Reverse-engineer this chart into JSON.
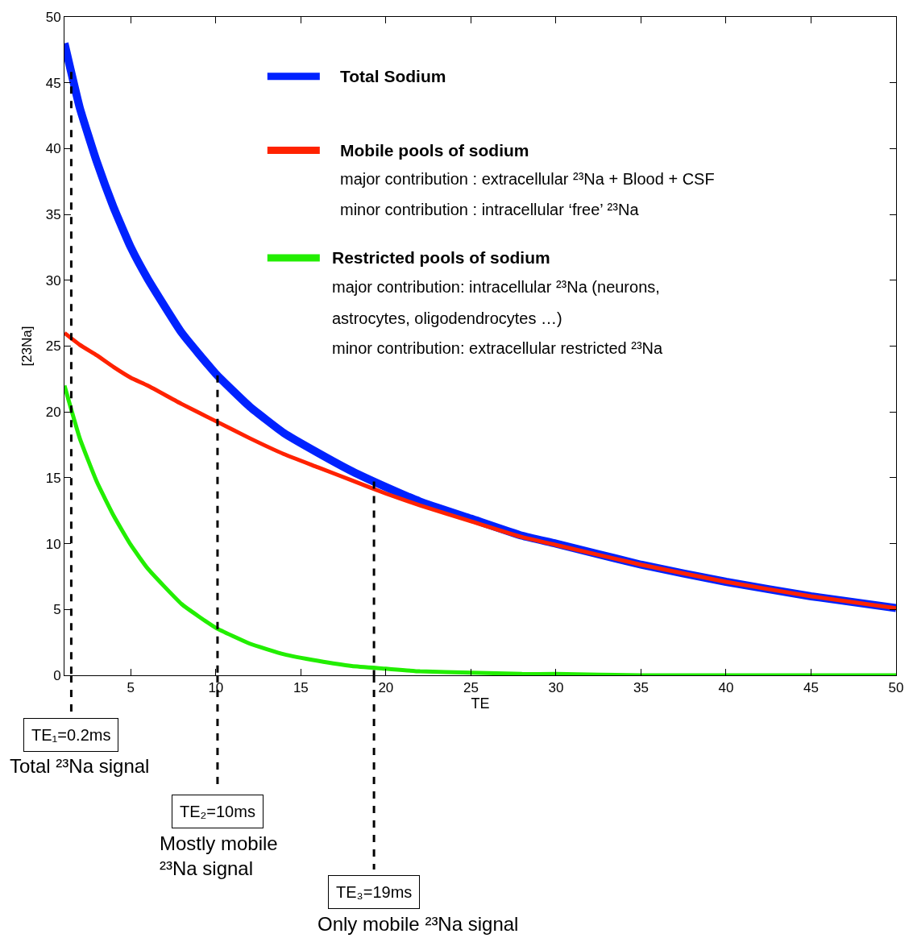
{
  "chart_data": {
    "type": "line",
    "xlabel": "TE",
    "ylabel": "[23Na]",
    "x": [
      1.1,
      2,
      3,
      4,
      5,
      6,
      8,
      10,
      12,
      14,
      16,
      18,
      20,
      22,
      25,
      28,
      30,
      35,
      40,
      45,
      50
    ],
    "series": [
      {
        "name": "Total Sodium",
        "color": "#0022ff",
        "values": [
          48.0,
          43.1,
          39.0,
          35.5,
          32.5,
          30.1,
          26.0,
          22.9,
          20.4,
          18.4,
          16.9,
          15.5,
          14.3,
          13.2,
          11.9,
          10.6,
          10.0,
          8.4,
          7.1,
          6.0,
          5.1
        ]
      },
      {
        "name": "Mobile pools of sodium",
        "color": "#ff2200",
        "values": [
          26.0,
          25.1,
          24.3,
          23.4,
          22.6,
          22.0,
          20.6,
          19.3,
          18.0,
          16.8,
          15.8,
          14.8,
          13.8,
          12.9,
          11.7,
          10.5,
          9.9,
          8.4,
          7.1,
          6.0,
          5.1
        ]
      },
      {
        "name": "Restricted pools of sodium",
        "color": "#22ee00",
        "values": [
          22.0,
          18.0,
          14.7,
          12.1,
          9.9,
          8.1,
          5.4,
          3.6,
          2.4,
          1.6,
          1.1,
          0.7,
          0.5,
          0.3,
          0.2,
          0.1,
          0.1,
          0.0,
          0.0,
          0.0,
          0.0
        ]
      }
    ],
    "xlim": [
      1.1,
      50
    ],
    "xticks": [
      5,
      10,
      15,
      20,
      25,
      30,
      35,
      40,
      45,
      50
    ],
    "ylim": [
      0,
      50
    ],
    "yticks": [
      0,
      5,
      10,
      15,
      20,
      25,
      30,
      35,
      40,
      45,
      50
    ],
    "grid": false,
    "legend": "top",
    "marker": "none",
    "line_style": "solid",
    "ref_lines": [
      {
        "axis": "x",
        "value": 1.5,
        "color": "#000000",
        "line_style": "dashed"
      },
      {
        "axis": "x",
        "value": 10.1,
        "color": "#000000",
        "line_style": "dashed"
      },
      {
        "axis": "x",
        "value": 19.3,
        "color": "#000000",
        "line_style": "dashed"
      }
    ],
    "annotations": [
      "major contribution : extracellular ²³Na + Blood + CSF",
      "minor contribution : intracellular ‘free’ ²³Na",
      "major contribution: intracellular ²³Na (neurons,",
      "astrocytes, oligodendrocytes …)",
      "minor contribution: extracellular restricted ²³Na",
      "Total ²³Na signal",
      "Mostly mobile\n²³Na signal",
      "Only mobile ²³Na signal",
      "TE₁=0.2ms",
      "TE₂=10ms",
      "TE₃=19ms"
    ]
  }
}
